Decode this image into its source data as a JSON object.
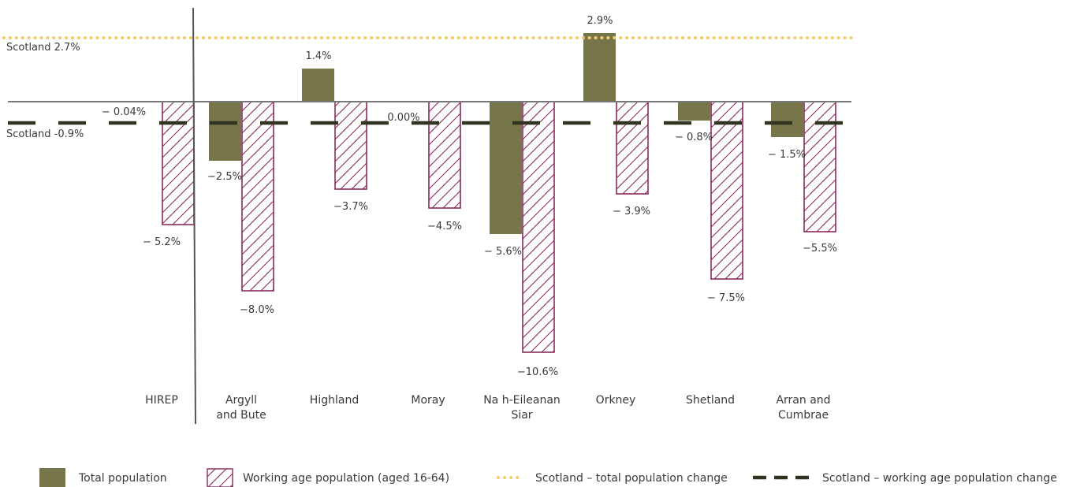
{
  "chart_data": {
    "type": "bar",
    "categories": [
      "HIREP",
      "Argyll and Bute",
      "Highland",
      "Moray",
      "Na h-Eileanan Siar",
      "Orkney",
      "Shetland",
      "Arran and Cumbrae"
    ],
    "category_lines": [
      [
        "HIREP"
      ],
      [
        "Argyll",
        "and Bute"
      ],
      [
        "Highland"
      ],
      [
        "Moray"
      ],
      [
        "Na h-Eileanan",
        "Siar"
      ],
      [
        "Orkney"
      ],
      [
        "Shetland"
      ],
      [
        "Arran and",
        "Cumbrae"
      ]
    ],
    "series": [
      {
        "name": "Total population",
        "values": [
          null,
          -2.5,
          1.4,
          null,
          -5.6,
          2.9,
          -0.8,
          -1.5
        ],
        "labels": [
          "",
          "−2.5%",
          "1.4%",
          "",
          "− 5.6%",
          "2.9%",
          "− 0.8%",
          "− 1.5%"
        ],
        "color": "#77754a"
      },
      {
        "name": "Working age population (aged 16-64)",
        "values": [
          -5.2,
          -8.0,
          -3.7,
          -4.5,
          -10.6,
          -3.9,
          -7.5,
          -5.5
        ],
        "labels": [
          "− 5.2%",
          "−8.0%",
          "−3.7%",
          "−4.5%",
          "−10.6%",
          "− 3.9%",
          "− 7.5%",
          "−5.5%"
        ],
        "color": "#8a2a5c"
      }
    ],
    "extra_labels": [
      {
        "category": 0,
        "text": "− 0.04%"
      },
      {
        "category": 3,
        "text": "0.00%"
      }
    ],
    "reference_lines": [
      {
        "name": "Scotland – total population change",
        "value": 2.7,
        "label": "Scotland 2.7%",
        "color": "#f5cc6e",
        "style": "dotted"
      },
      {
        "name": "Scotland – working age population change",
        "value": -0.9,
        "label": "Scotland -0.9%",
        "color": "#2f3320",
        "style": "dashed"
      }
    ],
    "ylim": [
      -12,
      4
    ],
    "legend": {
      "position": "bottom",
      "items": [
        {
          "text": "Total population",
          "kind": "solid"
        },
        {
          "text": "Working age population (aged 16-64)",
          "kind": "hatch"
        },
        {
          "text": "Scotland – total population change",
          "kind": "dotted"
        },
        {
          "text": "Scotland – working age population change",
          "kind": "dashed"
        }
      ]
    }
  }
}
